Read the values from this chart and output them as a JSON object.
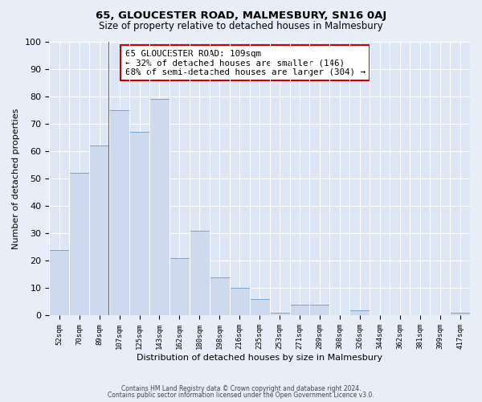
{
  "title": "65, GLOUCESTER ROAD, MALMESBURY, SN16 0AJ",
  "subtitle": "Size of property relative to detached houses in Malmesbury",
  "xlabel": "Distribution of detached houses by size in Malmesbury",
  "ylabel": "Number of detached properties",
  "footer_line1": "Contains HM Land Registry data © Crown copyright and database right 2024.",
  "footer_line2": "Contains public sector information licensed under the Open Government Licence v3.0.",
  "bin_labels": [
    "52sqm",
    "70sqm",
    "89sqm",
    "107sqm",
    "125sqm",
    "143sqm",
    "162sqm",
    "180sqm",
    "198sqm",
    "216sqm",
    "235sqm",
    "253sqm",
    "271sqm",
    "289sqm",
    "308sqm",
    "326sqm",
    "344sqm",
    "362sqm",
    "381sqm",
    "399sqm",
    "417sqm"
  ],
  "bar_heights": [
    24,
    52,
    62,
    75,
    67,
    79,
    21,
    31,
    14,
    10,
    6,
    1,
    4,
    4,
    0,
    2,
    0,
    0,
    0,
    0,
    1
  ],
  "bar_color": "#ccd9ee",
  "bar_edge_color": "#7aa3cc",
  "ylim": [
    0,
    100
  ],
  "yticks": [
    0,
    10,
    20,
    30,
    40,
    50,
    60,
    70,
    80,
    90,
    100
  ],
  "property_line_index": 3,
  "annotation_title": "65 GLOUCESTER ROAD: 109sqm",
  "annotation_line2": "← 32% of detached houses are smaller (146)",
  "annotation_line3": "68% of semi-detached houses are larger (304) →",
  "annotation_box_color": "#cc0000",
  "annotation_bg": "#ffffff",
  "background_color": "#e8eef8",
  "grid_color": "#ffffff",
  "axis_bg_color": "#dde6f5"
}
